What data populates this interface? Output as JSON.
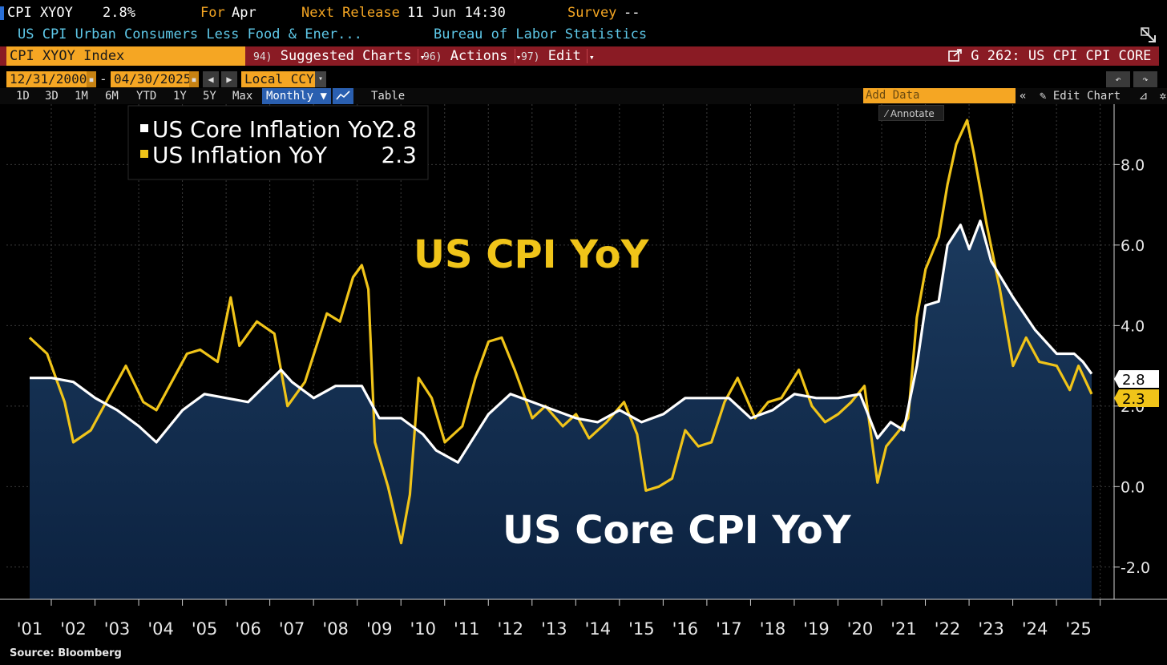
{
  "header": {
    "ticker": "CPI XYOY",
    "value": "2.8%",
    "for_label": "For",
    "for_value": "Apr",
    "next_release_label": "Next Release",
    "next_release_value": "11 Jun 14:30",
    "survey_label": "Survey",
    "survey_value": "--",
    "description": "US CPI Urban Consumers Less Food & Ener...",
    "source_agency": "Bureau of Labor Statistics"
  },
  "toolbar": {
    "index_label": "CPI XYOY Index",
    "suggested_num": "94)",
    "suggested_label": "Suggested Charts",
    "actions_num": "96)",
    "actions_label": "Actions",
    "edit_num": "97)",
    "edit_label": "Edit",
    "chart_code": "G 262: US CPI CPI CORE",
    "start_date": "12/31/2000",
    "dash": "-",
    "end_date": "04/30/2025",
    "currency": "Local CCY",
    "timeframes": [
      "1D",
      "3D",
      "1M",
      "6M",
      "YTD",
      "1Y",
      "5Y",
      "Max"
    ],
    "frequency": "Monthly",
    "table_label": "Table",
    "add_data_placeholder": "Add Data",
    "edit_chart_label": "Edit Chart",
    "annotate_label": "Annotate"
  },
  "icons": {
    "expand": "expand-icon",
    "arrow_down": "chevron-down-icon",
    "undo": "undo-icon",
    "redo": "redo-icon",
    "settings": "gear-icon",
    "pencil": "pencil-icon"
  },
  "colors": {
    "core": "#ffffff",
    "headline": "#f0c419",
    "area_fill_top": "#1b3a5e",
    "area_fill_bottom": "#0c2240",
    "accent_orange": "#f5a623",
    "toolbar_red": "#8a1b24"
  },
  "source": "Source: Bloomberg",
  "chart_data": {
    "type": "line",
    "title_overlay_1": "US CPI YoY",
    "title_overlay_2": "US Core CPI YoY",
    "ylim": [
      -2.8,
      9.5
    ],
    "yticks": [
      -2.0,
      0.0,
      2.0,
      4.0,
      6.0,
      8.0
    ],
    "ytick_labels": [
      "-2.0",
      "0.0",
      "2.0",
      "4.0",
      "6.0",
      "8.0"
    ],
    "xtick_labels": [
      "'01",
      "'02",
      "'03",
      "'04",
      "'05",
      "'06",
      "'07",
      "'08",
      "'09",
      "'10",
      "'11",
      "'12",
      "'13",
      "'14",
      "'15",
      "'16",
      "'17",
      "'18",
      "'19",
      "'20",
      "'21",
      "'22",
      "'23",
      "'24",
      "'25"
    ],
    "legend": {
      "position": "top-left"
    },
    "series": [
      {
        "name": "US Core Inflation YoY",
        "last_value": "2.8",
        "color": "#ffffff",
        "fill": "area",
        "x": [
          2001.0,
          2001.5,
          2002.0,
          2002.5,
          2003.0,
          2003.5,
          2003.9,
          2004.5,
          2005.0,
          2005.5,
          2006.0,
          2006.75,
          2007.0,
          2007.5,
          2008.0,
          2008.6,
          2009.0,
          2009.5,
          2010.0,
          2010.3,
          2010.8,
          2011.5,
          2012.0,
          2012.5,
          2013.0,
          2013.5,
          2014.0,
          2014.5,
          2015.0,
          2015.5,
          2016.0,
          2016.5,
          2017.0,
          2017.5,
          2018.0,
          2018.5,
          2019.0,
          2019.5,
          2020.0,
          2020.4,
          2020.7,
          2021.0,
          2021.3,
          2021.5,
          2021.8,
          2022.0,
          2022.3,
          2022.5,
          2022.75,
          2023.0,
          2023.5,
          2024.0,
          2024.5,
          2024.9,
          2025.1,
          2025.3
        ],
        "values": [
          2.7,
          2.7,
          2.6,
          2.2,
          1.9,
          1.5,
          1.1,
          1.9,
          2.3,
          2.2,
          2.1,
          2.9,
          2.6,
          2.2,
          2.5,
          2.5,
          1.7,
          1.7,
          1.3,
          0.9,
          0.6,
          1.8,
          2.3,
          2.1,
          1.9,
          1.7,
          1.6,
          1.9,
          1.6,
          1.8,
          2.2,
          2.2,
          2.2,
          1.7,
          1.9,
          2.3,
          2.2,
          2.2,
          2.3,
          1.2,
          1.6,
          1.4,
          3.0,
          4.5,
          4.6,
          6.0,
          6.5,
          5.9,
          6.6,
          5.6,
          4.7,
          3.9,
          3.3,
          3.3,
          3.1,
          2.8
        ]
      },
      {
        "name": "US Inflation YoY",
        "last_value": "2.3",
        "color": "#f0c419",
        "fill": "none",
        "x": [
          2001.0,
          2001.4,
          2001.8,
          2002.0,
          2002.4,
          2002.8,
          2003.2,
          2003.6,
          2003.9,
          2004.3,
          2004.6,
          2004.9,
          2005.3,
          2005.6,
          2005.8,
          2006.2,
          2006.6,
          2006.9,
          2007.3,
          2007.8,
          2008.1,
          2008.4,
          2008.6,
          2008.75,
          2008.9,
          2009.2,
          2009.5,
          2009.7,
          2009.9,
          2010.2,
          2010.5,
          2010.9,
          2011.2,
          2011.5,
          2011.8,
          2012.1,
          2012.5,
          2012.8,
          2013.2,
          2013.5,
          2013.8,
          2014.2,
          2014.6,
          2014.9,
          2015.1,
          2015.4,
          2015.7,
          2016.0,
          2016.3,
          2016.6,
          2016.9,
          2017.2,
          2017.6,
          2017.9,
          2018.2,
          2018.6,
          2018.9,
          2019.2,
          2019.5,
          2019.8,
          2020.1,
          2020.4,
          2020.6,
          2020.9,
          2021.1,
          2021.3,
          2021.5,
          2021.8,
          2022.0,
          2022.2,
          2022.45,
          2022.6,
          2022.9,
          2023.2,
          2023.5,
          2023.8,
          2024.1,
          2024.5,
          2024.8,
          2025.0,
          2025.3
        ],
        "values": [
          3.7,
          3.3,
          2.1,
          1.1,
          1.4,
          2.2,
          3.0,
          2.1,
          1.9,
          2.7,
          3.3,
          3.4,
          3.1,
          4.7,
          3.5,
          4.1,
          3.8,
          2.0,
          2.6,
          4.3,
          4.1,
          5.2,
          5.5,
          4.9,
          1.1,
          0.0,
          -1.4,
          -0.2,
          2.7,
          2.2,
          1.1,
          1.5,
          2.7,
          3.6,
          3.7,
          2.9,
          1.7,
          2.0,
          1.5,
          1.8,
          1.2,
          1.6,
          2.1,
          1.3,
          -0.1,
          0.0,
          0.2,
          1.4,
          1.0,
          1.1,
          2.1,
          2.7,
          1.7,
          2.1,
          2.2,
          2.9,
          2.0,
          1.6,
          1.8,
          2.1,
          2.5,
          0.1,
          1.0,
          1.4,
          1.7,
          4.2,
          5.4,
          6.2,
          7.5,
          8.5,
          9.1,
          8.3,
          6.5,
          4.9,
          3.0,
          3.7,
          3.1,
          3.0,
          2.4,
          3.0,
          2.3
        ]
      }
    ]
  }
}
